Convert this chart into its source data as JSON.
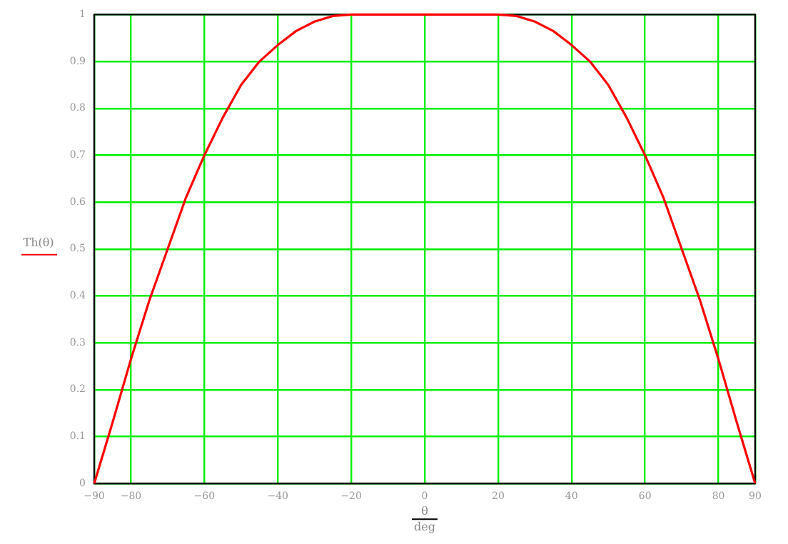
{
  "chart_data": {
    "type": "line",
    "xlabel": "θ",
    "ylabel": "Th(θ)",
    "annotations": [
      "deg"
    ],
    "x": [
      -90,
      -85,
      -80,
      -75,
      -70,
      -65,
      -60,
      -55,
      -50,
      -45,
      -40,
      -35,
      -30,
      -25,
      -20,
      -10,
      0,
      10,
      20,
      25,
      30,
      35,
      40,
      45,
      50,
      55,
      60,
      65,
      70,
      75,
      80,
      85,
      90
    ],
    "series": [
      {
        "color": "#ff0000",
        "values": [
          0,
          0.13,
          0.265,
          0.39,
          0.5,
          0.61,
          0.7,
          0.78,
          0.85,
          0.9,
          0.935,
          0.965,
          0.985,
          0.997,
          1,
          1,
          1,
          1,
          1,
          0.997,
          0.985,
          0.965,
          0.935,
          0.9,
          0.85,
          0.78,
          0.7,
          0.61,
          0.5,
          0.39,
          0.265,
          0.13,
          0
        ]
      }
    ],
    "xlim": [
      -90,
      90
    ],
    "xticks": [
      -90,
      -80,
      -60,
      -40,
      -20,
      0,
      20,
      40,
      60,
      80,
      90
    ],
    "ylim": [
      0,
      1
    ],
    "yticks": [
      0,
      0.1,
      0.2,
      0.3,
      0.4,
      0.5,
      0.6,
      0.7,
      0.8,
      0.9,
      1
    ],
    "grid": true,
    "marker": "none",
    "line_style": "solid"
  }
}
